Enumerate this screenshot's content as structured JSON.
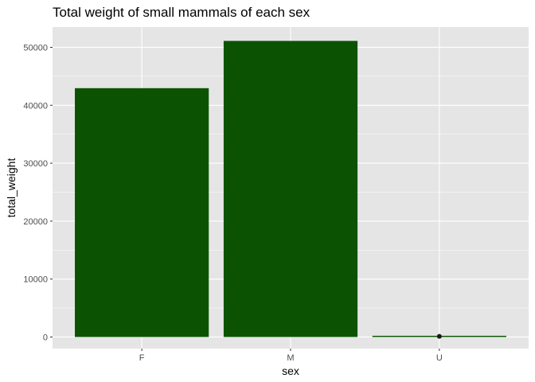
{
  "chart_data": {
    "type": "bar",
    "title": "Total weight of small mammals of each sex",
    "xlabel": "sex",
    "ylabel": "total_weight",
    "categories": [
      "F",
      "M",
      "U"
    ],
    "values": [
      42950,
      51110,
      120
    ],
    "ylim": [
      -2000,
      53500
    ],
    "yticks": [
      0,
      10000,
      20000,
      30000,
      40000,
      50000
    ],
    "ytick_labels": [
      "0",
      "10000",
      "20000",
      "30000",
      "40000",
      "50000"
    ],
    "grid": true,
    "legend": "none",
    "colors": {
      "bar": "#0b5302",
      "panel": "#e5e5e5",
      "grid": "#ffffff",
      "point": "#1a1a1a"
    }
  }
}
